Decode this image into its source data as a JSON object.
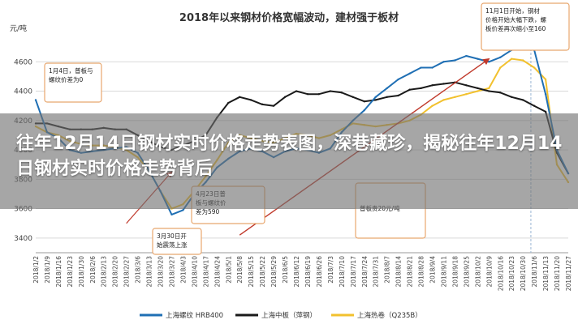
{
  "chart_data": {
    "type": "line",
    "title": "2018年以来钢材价格宽幅波动，建材强于板材",
    "ylabel": "元/吨",
    "ylim": [
      3300,
      4800
    ],
    "yticks": [
      3400,
      3600,
      3800,
      4000,
      4200,
      4400,
      4600
    ],
    "grid": true,
    "legend_position": "bottom",
    "categories": [
      "2018/1/2",
      "2018/1/9",
      "2018/1/16",
      "2018/1/23",
      "2018/1/30",
      "2018/2/6",
      "2018/2/13",
      "2018/2/20",
      "2018/2/27",
      "2018/3/6",
      "2018/3/13",
      "2018/3/20",
      "2018/3/27",
      "2018/4/3",
      "2018/4/10",
      "2018/4/17",
      "2018/4/24",
      "2018/5/1",
      "2018/5/8",
      "2018/5/15",
      "2018/5/22",
      "2018/5/29",
      "2018/6/5",
      "2018/6/12",
      "2018/6/19",
      "2018/6/26",
      "2018/7/3",
      "2018/7/10",
      "2018/7/17",
      "2018/7/24",
      "2018/7/31",
      "2018/8/7",
      "2018/8/14",
      "2018/8/21",
      "2018/8/28",
      "2018/9/4",
      "2018/9/11",
      "2018/9/18",
      "2018/9/25",
      "2018/10/2",
      "2018/10/9",
      "2018/10/16",
      "2018/10/23",
      "2018/10/30",
      "2018/11/6",
      "2018/11/13",
      "2018/11/20",
      "2018/11/27"
    ],
    "series": [
      {
        "name": "上海螺纹 HRB400",
        "color": "#1f6fb4",
        "values": [
          4340,
          4120,
          4080,
          4000,
          3980,
          3990,
          4000,
          4010,
          4020,
          3980,
          3860,
          3720,
          3560,
          3590,
          3700,
          3780,
          3880,
          3940,
          3990,
          4010,
          3990,
          3950,
          3990,
          4010,
          4000,
          3980,
          4010,
          4120,
          4200,
          4270,
          4360,
          4420,
          4480,
          4520,
          4560,
          4560,
          4600,
          4610,
          4640,
          4620,
          4600,
          4630,
          4680,
          4700,
          4680,
          4380,
          4000,
          3840
        ]
      },
      {
        "name": "上海中板（萍钢）",
        "color": "#1a1a1a",
        "values": [
          4180,
          4180,
          4160,
          4140,
          4140,
          4140,
          4150,
          4140,
          4140,
          4100,
          4060,
          4020,
          4000,
          4030,
          4060,
          4100,
          4220,
          4320,
          4360,
          4340,
          4310,
          4300,
          4360,
          4400,
          4380,
          4380,
          4400,
          4390,
          4360,
          4330,
          4340,
          4360,
          4370,
          4410,
          4420,
          4440,
          4450,
          4460,
          4440,
          4420,
          4400,
          4390,
          4360,
          4340,
          4300,
          4260,
          3980,
          3840
        ]
      },
      {
        "name": "上海热卷（Q235B）",
        "color": "#f2c12e",
        "values": [
          4160,
          4120,
          4100,
          4060,
          4040,
          4030,
          4030,
          4020,
          4000,
          3950,
          3860,
          3720,
          3600,
          3630,
          3720,
          3820,
          3930,
          4050,
          4100,
          4080,
          4060,
          4050,
          4080,
          4110,
          4100,
          4080,
          4100,
          4140,
          4180,
          4170,
          4160,
          4170,
          4180,
          4200,
          4240,
          4300,
          4340,
          4360,
          4380,
          4400,
          4420,
          4560,
          4620,
          4610,
          4560,
          4480,
          3900,
          3780
        ]
      }
    ],
    "annotations": [
      {
        "text": "1月4日，普板与螺纹价差为0"
      },
      {
        "text": "4月23日普板与螺纹价差为590"
      },
      {
        "text": "3月30日开始震荡上涨"
      },
      {
        "text": "普板贵20元/吨"
      },
      {
        "text": "11月1日开始，钢材价格开始大幅下跌，螺板价差再次缩小至160"
      }
    ]
  },
  "overlay": {
    "headline": "往年12月14日钢材实时价格走势表图，深巷藏珍，揭秘往年12月14日钢材实时价格走势背后"
  },
  "colors": {
    "grid": "#d9d9d9",
    "annotation_border": "#e8a66d",
    "arrow": "#c0392b",
    "dashed_guide": "#9bb7d4"
  }
}
